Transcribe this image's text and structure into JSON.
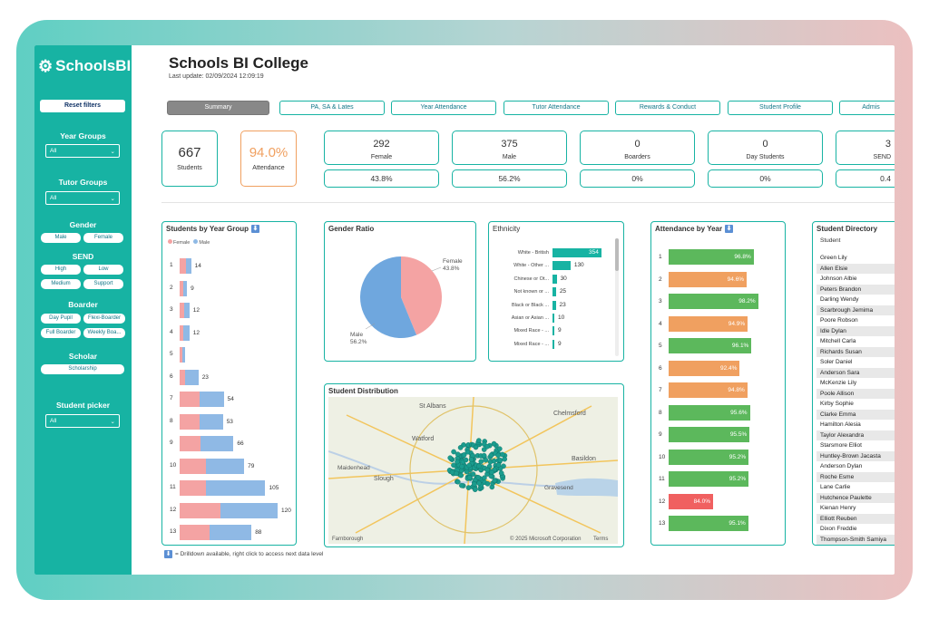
{
  "sidebar": {
    "logo_text": "SchoolsBI",
    "reset_label": "Reset filters",
    "year_groups": {
      "label": "Year Groups",
      "value": "All"
    },
    "tutor_groups": {
      "label": "Tutor Groups",
      "value": "All"
    },
    "gender": {
      "label": "Gender",
      "options": [
        "Male",
        "Female"
      ]
    },
    "send": {
      "label": "SEND",
      "options": [
        "High",
        "Low",
        "Medium",
        "Support"
      ]
    },
    "boarder": {
      "label": "Boarder",
      "options": [
        "Day Pupil",
        "Flexi-Boarder",
        "Full Boarder",
        "Weekly Boa..."
      ]
    },
    "scholar": {
      "label": "Scholar",
      "options": [
        "Scholarship"
      ]
    },
    "student_picker": {
      "label": "Student picker",
      "value": "All"
    }
  },
  "header": {
    "title": "Schools BI College",
    "last_update": "Last update: 02/09/2024 12:09:19"
  },
  "tabs": [
    "Summary",
    "PA, SA & Lates",
    "Year Attendance",
    "Tutor Attendance",
    "Rewards & Conduct",
    "Student Profile",
    "Admis"
  ],
  "kpis": {
    "students": {
      "value": "667",
      "label": "Students"
    },
    "attendance": {
      "value": "94.0%",
      "label": "Attendance"
    },
    "female": {
      "value": "292",
      "label": "Female",
      "pct": "43.8%"
    },
    "male": {
      "value": "375",
      "label": "Male",
      "pct": "56.2%"
    },
    "boarders": {
      "value": "0",
      "label": "Boarders",
      "pct": "0%"
    },
    "day_students": {
      "value": "0",
      "label": "Day Students",
      "pct": "0%"
    },
    "send": {
      "value": "3",
      "label": "SEND",
      "pct": "0.4"
    }
  },
  "colors": {
    "teal": "#17b3a3",
    "female": "#f4a3a3",
    "male": "#8fb9e5",
    "green": "#5cb85c",
    "orange": "#f0a060",
    "red": "#f06060"
  },
  "chart_data": [
    {
      "type": "bar",
      "title": "Students by Year Group",
      "legend": [
        "Female",
        "Male"
      ],
      "categories": [
        "1",
        "2",
        "3",
        "4",
        "5",
        "6",
        "7",
        "8",
        "9",
        "10",
        "11",
        "12",
        "13"
      ],
      "series": [
        {
          "name": "Female",
          "values": [
            8,
            4,
            5,
            4,
            3,
            7,
            24,
            24,
            26,
            32,
            32,
            50,
            37
          ]
        },
        {
          "name": "Male",
          "values": [
            6,
            5,
            7,
            8,
            4,
            16,
            30,
            29,
            40,
            47,
            73,
            70,
            51
          ]
        }
      ],
      "totals": [
        14,
        9,
        12,
        12,
        7,
        23,
        54,
        53,
        66,
        79,
        105,
        120,
        88
      ],
      "total_labels": [
        "14",
        "9",
        "12",
        "12",
        "",
        "23",
        "54",
        "53",
        "66",
        "79",
        "105",
        "120",
        "88"
      ]
    },
    {
      "type": "pie",
      "title": "Gender Ratio",
      "labels": [
        "Female",
        "Male"
      ],
      "values": [
        43.8,
        56.2
      ],
      "value_labels": [
        "43.8%",
        "56.2%"
      ]
    },
    {
      "type": "bar",
      "title": "Ethnicity",
      "categories": [
        "White - British",
        "White - Other ...",
        "Chinese or Ot...",
        "Not known or ...",
        "Black or Black ...",
        "Asian or Asian ...",
        "Mixed Race - ...",
        "Mixed Race - ..."
      ],
      "values": [
        354,
        130,
        30,
        25,
        23,
        10,
        9,
        9
      ],
      "value_labels": [
        "354",
        "130",
        "30",
        "25",
        "23",
        "10",
        "9",
        "9"
      ]
    },
    {
      "type": "bar",
      "title": "Attendance by Year",
      "categories": [
        "1",
        "2",
        "3",
        "4",
        "5",
        "6",
        "7",
        "8",
        "9",
        "10",
        "11",
        "12",
        "13"
      ],
      "values": [
        96.8,
        94.6,
        98.2,
        94.9,
        96.1,
        92.4,
        94.8,
        95.6,
        95.5,
        95.2,
        95.2,
        84.0,
        95.1
      ],
      "value_labels": [
        "96.8%",
        "94.6%",
        "98.2%",
        "94.9%",
        "96.1%",
        "92.4%",
        "94.8%",
        "95.6%",
        "95.5%",
        "95.2%",
        "95.2%",
        "84.0%",
        "95.1%"
      ],
      "bands": [
        "green",
        "orange",
        "green",
        "orange",
        "green",
        "orange",
        "orange",
        "green",
        "green",
        "green",
        "green",
        "red",
        "green"
      ]
    }
  ],
  "distribution": {
    "title": "Student Distribution",
    "places": [
      "St Albans",
      "Chelmsford",
      "Watford",
      "Basildon",
      "Maidenhead",
      "Slough",
      "Gravesend"
    ],
    "credit": "© 2025 Microsoft Corporation",
    "terms": "Terms",
    "map_brand": "Farnborough"
  },
  "directory": {
    "title": "Student Directory",
    "column": "Student",
    "names": [
      "Green Lily",
      "Allen Elsie",
      "Johnson Albie",
      "Peters Brandon",
      "Darling Wendy",
      "Scarbrough Jemima",
      "Poore Robson",
      "Idle Dylan",
      "Mitchell Carla",
      "Richards Susan",
      "Soler Daniel",
      "Anderson Sara",
      "McKenzie Lily",
      "Poole Allison",
      "Kirby Sophie",
      "Clarke Emma",
      "Hamilton Alesia",
      "Taylor Alexandra",
      "Starsmore Elliot",
      "Huntley-Brown Jacasta",
      "Anderson Dylan",
      "Roche Esme",
      "Lane Carlie",
      "Hutchence Paulette",
      "Kienan Henry",
      "Elliott Reuben",
      "Dixon Freddie",
      "Thompson-Smith Samiya"
    ]
  },
  "footnote": "= Drilldown available, right click to access next data level"
}
